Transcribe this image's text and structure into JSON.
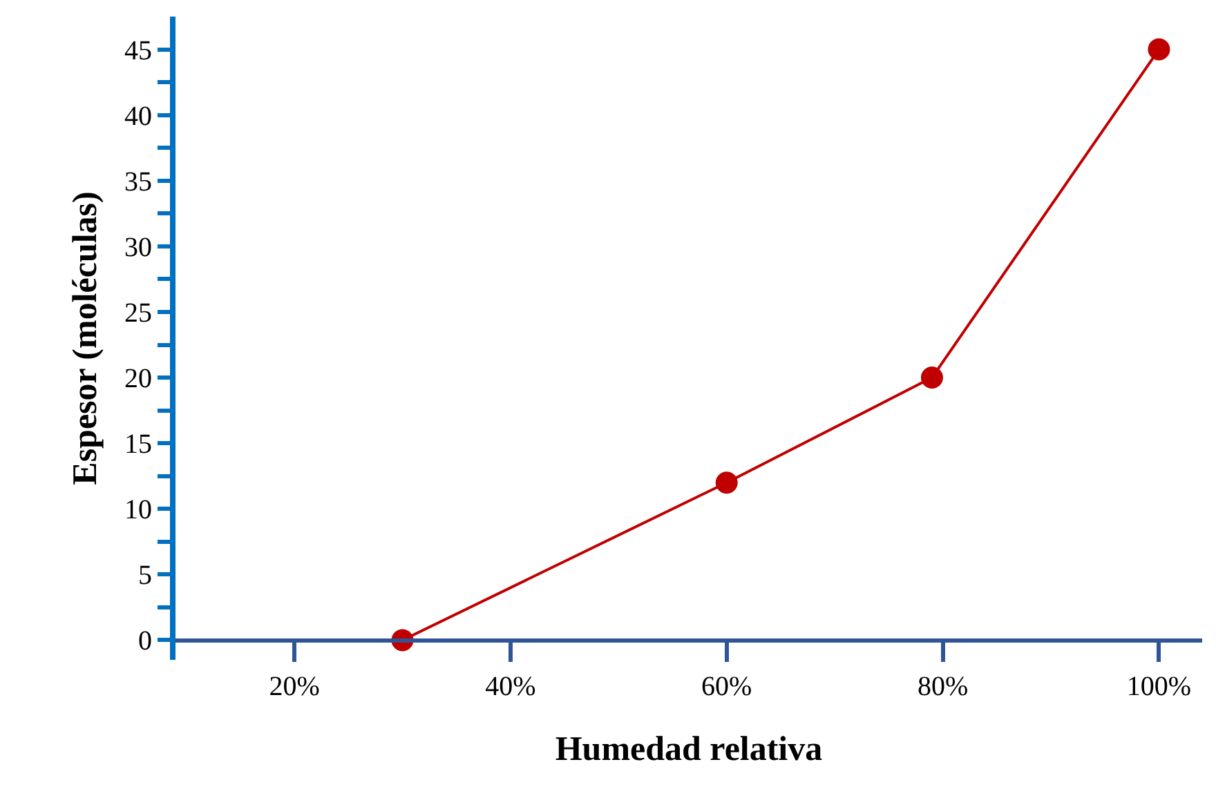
{
  "chart_data": {
    "type": "line",
    "xlabel": "Humedad relativa",
    "ylabel": "Espesor (moléculas)",
    "x": [
      30,
      60,
      79,
      100
    ],
    "series": [
      {
        "color": "#c00000",
        "values": [
          0,
          12,
          20,
          45
        ]
      }
    ],
    "xlim": [
      9,
      104
    ],
    "ylim": [
      -1.5,
      47.5
    ],
    "xticks": [
      {
        "value": 20,
        "label": "20%"
      },
      {
        "value": 40,
        "label": "40%"
      },
      {
        "value": 60,
        "label": "60%"
      },
      {
        "value": 80,
        "label": "80%"
      },
      {
        "value": 100,
        "label": "100%"
      }
    ],
    "yticks": [
      0,
      {
        "value": 2.5,
        "label": null
      },
      5,
      {
        "value": 7.5,
        "label": null
      },
      10,
      {
        "value": 12.5,
        "label": null
      },
      15,
      {
        "value": 17.5,
        "label": null
      },
      20,
      {
        "value": 22.5,
        "label": null
      },
      25,
      {
        "value": 27.5,
        "label": null
      },
      30,
      {
        "value": 32.5,
        "label": null
      },
      35,
      {
        "value": 37.5,
        "label": null
      },
      40,
      {
        "value": 42.5,
        "label": null
      },
      45
    ],
    "grid": false,
    "marker": "circle",
    "line_style": "solid"
  }
}
